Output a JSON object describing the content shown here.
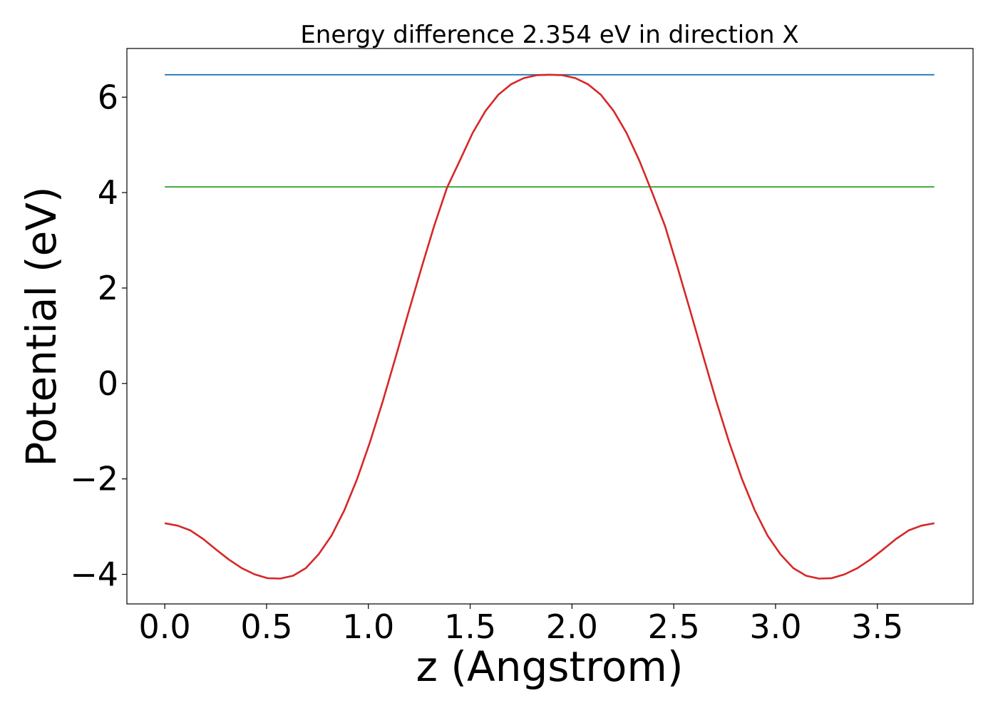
{
  "chart_data": {
    "type": "line",
    "title": "Energy difference 2.354 eV in direction X",
    "xlabel": "z (Angstrom)",
    "ylabel": "Potential (eV)",
    "xlim": [
      -0.186,
      3.97
    ],
    "ylim": [
      -4.62,
      7.02
    ],
    "xticks": [
      0.0,
      0.5,
      1.0,
      1.5,
      2.0,
      2.5,
      3.0,
      3.5
    ],
    "xtick_labels": [
      "0.0",
      "0.5",
      "1.0",
      "1.5",
      "2.0",
      "2.5",
      "3.0",
      "3.5"
    ],
    "yticks": [
      -4,
      -2,
      0,
      2,
      4,
      6
    ],
    "ytick_labels": [
      "−4",
      "−2",
      "0",
      "2",
      "4",
      "6"
    ],
    "grid": false,
    "series": [
      {
        "color": "#1f77b4",
        "x": [
          0.0,
          3.78
        ],
        "y": [
          6.47,
          6.47
        ]
      },
      {
        "color": "#2ca02c",
        "x": [
          0.0,
          3.78
        ],
        "y": [
          4.12,
          4.12
        ]
      },
      {
        "color": "#d62728",
        "x": [
          0.0,
          0.063,
          0.126,
          0.189,
          0.252,
          0.315,
          0.378,
          0.441,
          0.504,
          0.567,
          0.63,
          0.693,
          0.756,
          0.819,
          0.882,
          0.945,
          1.008,
          1.071,
          1.134,
          1.197,
          1.26,
          1.323,
          1.386,
          1.449,
          1.512,
          1.575,
          1.638,
          1.701,
          1.764,
          1.827,
          1.89,
          1.953,
          2.016,
          2.079,
          2.142,
          2.205,
          2.268,
          2.331,
          2.394,
          2.457,
          2.52,
          2.583,
          2.646,
          2.709,
          2.772,
          2.835,
          2.898,
          2.961,
          3.024,
          3.087,
          3.15,
          3.213,
          3.276,
          3.339,
          3.402,
          3.465,
          3.528,
          3.591,
          3.654,
          3.717,
          3.78
        ],
        "y": [
          -2.93,
          -2.98,
          -3.08,
          -3.26,
          -3.48,
          -3.69,
          -3.87,
          -4.0,
          -4.08,
          -4.09,
          -4.03,
          -3.87,
          -3.58,
          -3.19,
          -2.66,
          -2.0,
          -1.23,
          -0.37,
          0.55,
          1.49,
          2.41,
          3.3,
          4.1,
          4.67,
          5.25,
          5.71,
          6.05,
          6.27,
          6.4,
          6.46,
          6.47,
          6.46,
          6.4,
          6.27,
          6.05,
          5.71,
          5.25,
          4.67,
          4.0,
          3.3,
          2.41,
          1.49,
          0.55,
          -0.37,
          -1.23,
          -2.0,
          -2.66,
          -3.19,
          -3.58,
          -3.87,
          -4.03,
          -4.09,
          -4.08,
          -4.0,
          -3.87,
          -3.69,
          -3.48,
          -3.26,
          -3.08,
          -2.98,
          -2.93
        ]
      }
    ]
  }
}
